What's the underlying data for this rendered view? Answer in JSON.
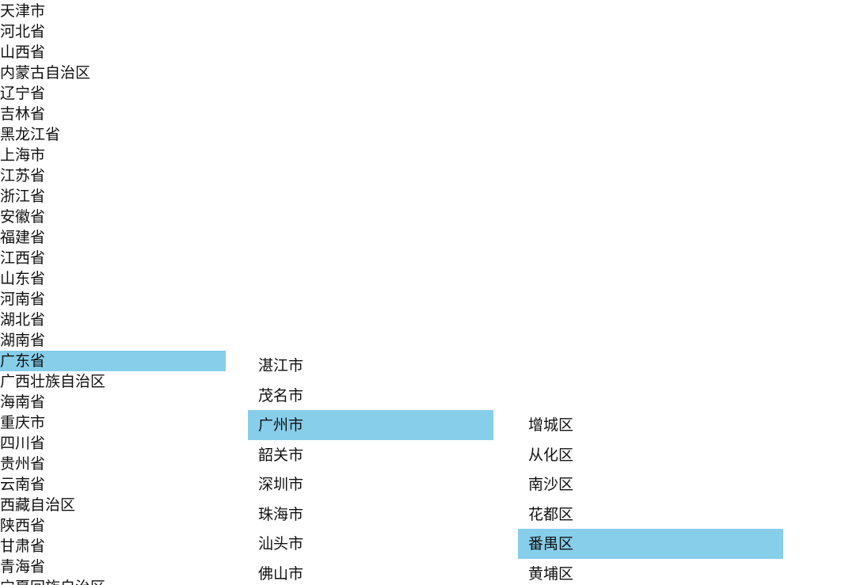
{
  "selection_color": "#87ceeb",
  "provinces": {
    "items": [
      "天津市",
      "河北省",
      "山西省",
      "内蒙古自治区",
      "辽宁省",
      "吉林省",
      "黑龙江省",
      "上海市",
      "江苏省",
      "浙江省",
      "安徽省",
      "福建省",
      "江西省",
      "山东省",
      "河南省",
      "湖北省",
      "湖南省",
      "广东省",
      "广西壮族自治区",
      "海南省",
      "重庆市",
      "四川省",
      "贵州省",
      "云南省",
      "西藏自治区",
      "陕西省",
      "甘肃省",
      "青海省",
      "宁夏回族自治区"
    ],
    "selected": "广东省"
  },
  "cities": {
    "items": [
      "湛江市",
      "茂名市",
      "广州市",
      "韶关市",
      "深圳市",
      "珠海市",
      "汕头市",
      "佛山市"
    ],
    "selected": "广州市"
  },
  "districts": {
    "items": [
      "增城区",
      "从化区",
      "南沙区",
      "花都区",
      "番禺区",
      "黄埔区"
    ],
    "selected": "番禺区"
  }
}
